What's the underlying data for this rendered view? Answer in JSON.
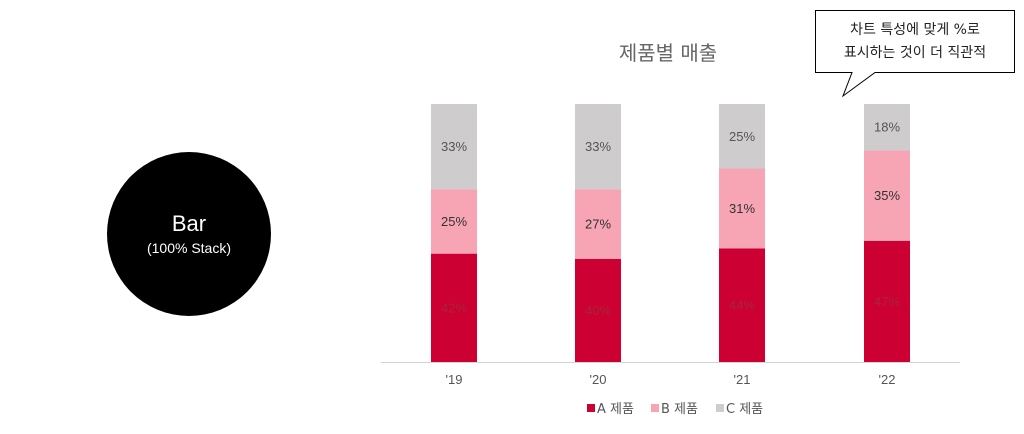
{
  "badge": {
    "title": "Bar",
    "subtitle": "(100% Stack)"
  },
  "callout": {
    "line1": "차트 특성에 맞게 %로",
    "line2": "표시하는 것이 더 직관적"
  },
  "colors": {
    "A": "#cc0033",
    "B": "#f7a5b5",
    "C": "#cfcccd"
  },
  "chart_data": {
    "type": "bar",
    "stacked": "100%",
    "title": "제품별 매출",
    "categories": [
      "'19",
      "'20",
      "'21",
      "'22"
    ],
    "series": [
      {
        "name": "A 제품",
        "values": [
          42,
          40,
          44,
          47
        ]
      },
      {
        "name": "B 제품",
        "values": [
          25,
          27,
          31,
          35
        ]
      },
      {
        "name": "C 제품",
        "values": [
          33,
          33,
          25,
          18
        ]
      }
    ],
    "value_suffix": "%",
    "ylim": [
      0,
      100
    ],
    "grid": false,
    "legend": "bottom",
    "xlabel": "",
    "ylabel": ""
  }
}
